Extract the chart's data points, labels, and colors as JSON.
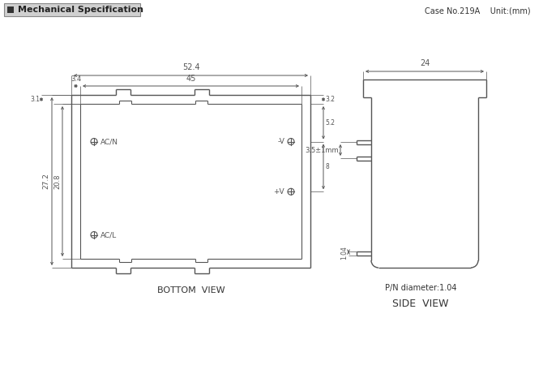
{
  "title_text": "Mechanical Specification",
  "case_info": "Case No.219A    Unit:(mm)",
  "bottom_view_label": "BOTTOM  VIEW",
  "side_view_label": "SIDE  VIEW",
  "pn_diameter": "P/N diameter:1.04",
  "line_color": "#555555",
  "dim_color": "#555555",
  "dim_52_4": "52.4",
  "dim_45": "45",
  "dim_3_4": "3.4",
  "dim_27_2": "27.2",
  "dim_20_8": "20.8",
  "dim_3_2a": "3.2",
  "dim_3_1": "3.1",
  "dim_5_2": "5.2",
  "dim_8": "8",
  "dim_24": "24",
  "dim_3_5": "3.5±1mm",
  "dim_1_04": "1.04",
  "label_acn": "AC/N",
  "label_neg": "-V",
  "label_pos": "+V",
  "label_acl": "AC/L"
}
